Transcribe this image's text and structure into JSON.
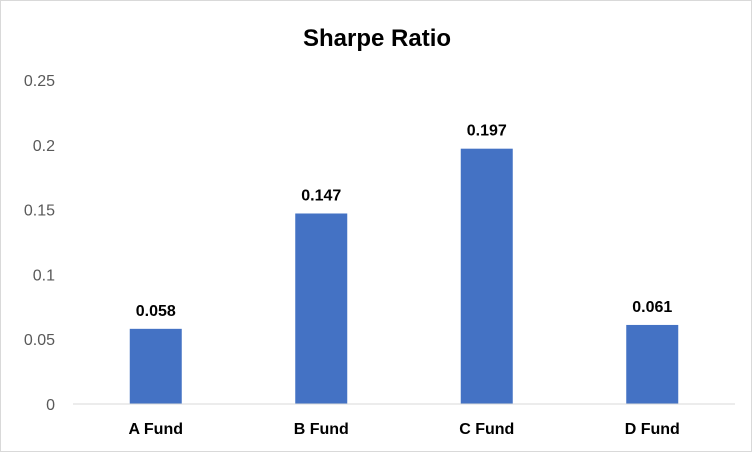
{
  "chart_data": {
    "type": "bar",
    "title": "Sharpe Ratio",
    "xlabel": "",
    "ylabel": "",
    "categories": [
      "A Fund",
      "B Fund",
      "C Fund",
      "D Fund"
    ],
    "values": [
      0.058,
      0.147,
      0.197,
      0.061
    ],
    "data_labels": [
      "0.058",
      "0.147",
      "0.197",
      "0.061"
    ],
    "ylim": [
      0,
      0.25
    ],
    "yticks": [
      "0",
      "0.05",
      "0.1",
      "0.15",
      "0.2",
      "0.25"
    ],
    "grid": false,
    "legend": "none",
    "bar_color": "#4472c4"
  }
}
